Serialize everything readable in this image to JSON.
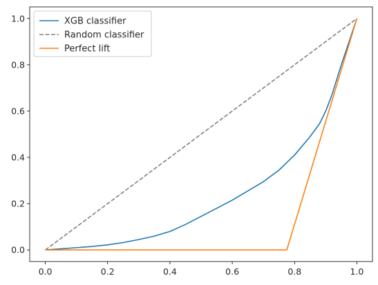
{
  "chart_data": {
    "type": "line",
    "title": "",
    "xlabel": "",
    "ylabel": "",
    "xlim": [
      -0.05,
      1.05
    ],
    "ylim": [
      -0.05,
      1.05
    ],
    "xticks": [
      0.0,
      0.2,
      0.4,
      0.6,
      0.8,
      1.0
    ],
    "yticks": [
      0.0,
      0.2,
      0.4,
      0.6,
      0.8,
      1.0
    ],
    "grid": false,
    "legend_position": "top-left",
    "series": [
      {
        "name": "XGB classifier",
        "color": "#1f77b4",
        "style": "solid",
        "x": [
          0.0,
          0.05,
          0.1,
          0.15,
          0.2,
          0.25,
          0.3,
          0.35,
          0.4,
          0.45,
          0.5,
          0.55,
          0.6,
          0.65,
          0.7,
          0.75,
          0.8,
          0.85,
          0.88,
          0.9,
          0.92,
          0.95,
          1.0
        ],
        "y": [
          0.0,
          0.005,
          0.01,
          0.015,
          0.022,
          0.032,
          0.045,
          0.06,
          0.08,
          0.11,
          0.145,
          0.18,
          0.215,
          0.255,
          0.295,
          0.345,
          0.41,
          0.49,
          0.545,
          0.6,
          0.67,
          0.8,
          1.0
        ]
      },
      {
        "name": "Random classifier",
        "color": "#808080",
        "style": "dashed",
        "x": [
          0.0,
          1.0
        ],
        "y": [
          0.0,
          1.0
        ]
      },
      {
        "name": "Perfect lift",
        "color": "#ff7f0e",
        "style": "solid",
        "x": [
          0.0,
          0.775,
          1.0
        ],
        "y": [
          0.0,
          0.0,
          1.0
        ]
      }
    ]
  }
}
